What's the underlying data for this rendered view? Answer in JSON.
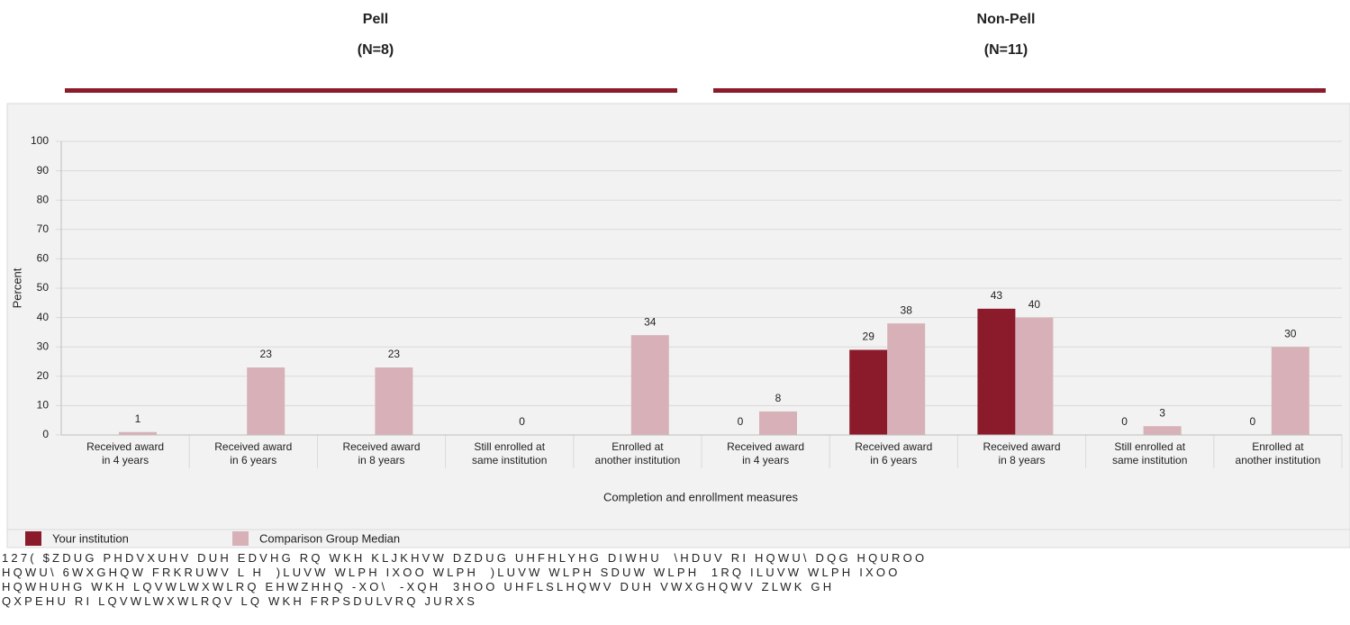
{
  "chart_data": {
    "type": "bar",
    "groups": [
      {
        "title": "Pell",
        "subtitle": "(N=8)"
      },
      {
        "title": "Non-Pell",
        "subtitle": "(N=11)"
      }
    ],
    "categories": [
      [
        "Received award",
        "in 4 years"
      ],
      [
        "Received award",
        "in 6 years"
      ],
      [
        "Received award",
        "in 8 years"
      ],
      [
        "Still enrolled at",
        "same institution"
      ],
      [
        "Enrolled at",
        "another institution"
      ],
      [
        "Received award",
        "in 4 years"
      ],
      [
        "Received award",
        "in 6 years"
      ],
      [
        "Received award",
        "in 8 years"
      ],
      [
        "Still enrolled at",
        "same institution"
      ],
      [
        "Enrolled at",
        "another institution"
      ]
    ],
    "series": [
      {
        "name": "Your institution",
        "color": "#8b1a2b",
        "values": [
          null,
          null,
          null,
          null,
          null,
          0,
          29,
          43,
          0,
          0
        ]
      },
      {
        "name": "Comparison Group Median",
        "color": "#d8b1b8",
        "values": [
          1,
          23,
          23,
          0,
          34,
          8,
          38,
          40,
          3,
          30
        ]
      }
    ],
    "ylabel": "Percent",
    "xlabel": "Completion and enrollment measures",
    "ylim": [
      0,
      100
    ],
    "yticks": [
      0,
      10,
      20,
      30,
      40,
      50,
      60,
      70,
      80,
      90,
      100
    ],
    "grid": true,
    "legend": "bottom-left"
  },
  "note": [
    "127( $ZDUG PHDVXUHV DUH EDVHG RQ WKH KLJKHVW DZDUG UHFHLYHG DIWHU  \\HDUV RI HQWU\\ DQG HQUROO",
    "HQWU\\ 6WXGHQW FRKRUWV L H  )LUVW WLPH IXOO WLPH  )LUVW WLPH SDUW WLPH  1RQ ILUVW WLPH IXOO",
    "HQWHUHG WKH LQVWLWXWLRQ EHWZHHQ -XO\\  -XQH  3HOO UHFLSLHQWV DUH VWXGHQWV ZLWK GH",
    "QXPEHU RI LQVWLWXWLRQV LQ WKH FRPSDULVRQ JURXS"
  ]
}
